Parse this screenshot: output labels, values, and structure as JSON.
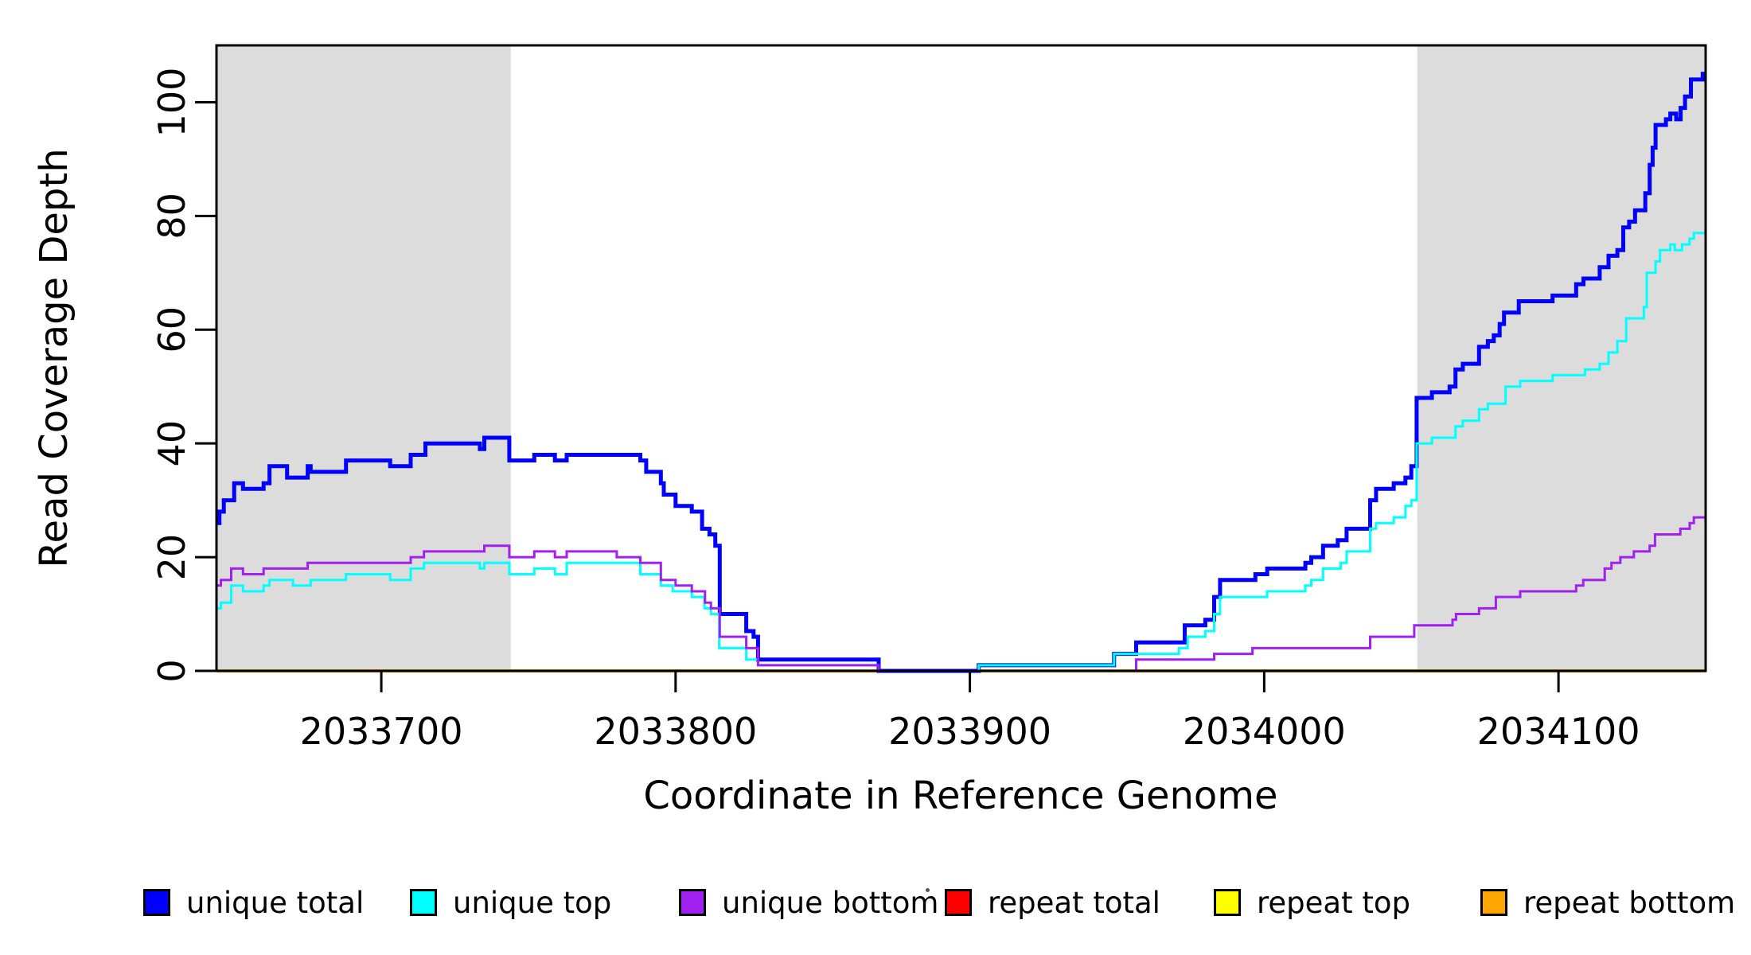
{
  "chart_data": {
    "type": "line",
    "subtype": "step-coverage-plot",
    "title": "",
    "xlabel": "Coordinate in Reference Genome",
    "ylabel": "Read Coverage Depth",
    "xlim": [
      2033644,
      2034150
    ],
    "ylim": [
      0,
      110
    ],
    "x_ticks": [
      2033700,
      2033800,
      2033900,
      2034000,
      2034100
    ],
    "y_ticks": [
      0,
      20,
      40,
      60,
      80,
      100
    ],
    "grid": false,
    "legend_position": "bottom",
    "highlight_color": "#DCDCDC",
    "highlight_regions": [
      {
        "start": 2033644,
        "end": 2033744
      },
      {
        "start": 2034052,
        "end": 2034150
      }
    ],
    "series": [
      {
        "name": "repeat total",
        "color": "#FF0000",
        "width": 3,
        "points": [
          [
            2033644,
            0
          ]
        ]
      },
      {
        "name": "repeat top",
        "color": "#FFFF00",
        "width": 3,
        "points": [
          [
            2033644,
            0
          ]
        ]
      },
      {
        "name": "repeat bottom",
        "color": "#FFA500",
        "width": 4,
        "points": [
          [
            2033644,
            0
          ]
        ]
      },
      {
        "name": "unique total",
        "color": "#0000FF",
        "width": 5,
        "points": [
          [
            2033644,
            26
          ],
          [
            2033645,
            28
          ],
          [
            2033646.5,
            30
          ],
          [
            2033650,
            33
          ],
          [
            2033653,
            32
          ],
          [
            2033660,
            33
          ],
          [
            2033662,
            36
          ],
          [
            2033668,
            34
          ],
          [
            2033675,
            36
          ],
          [
            2033676,
            35
          ],
          [
            2033688,
            37
          ],
          [
            2033703,
            36
          ],
          [
            2033710,
            38
          ],
          [
            2033715,
            40
          ],
          [
            2033733.5,
            39
          ],
          [
            2033735,
            41
          ],
          [
            2033743.5,
            37
          ],
          [
            2033752,
            38
          ],
          [
            2033759,
            37
          ],
          [
            2033763,
            38
          ],
          [
            2033788,
            37
          ],
          [
            2033790,
            35
          ],
          [
            2033795,
            33
          ],
          [
            2033796,
            31
          ],
          [
            2033800,
            29
          ],
          [
            2033805.5,
            28
          ],
          [
            2033809,
            25
          ],
          [
            2033811.5,
            24
          ],
          [
            2033813.5,
            22
          ],
          [
            2033815,
            10
          ],
          [
            2033824,
            7
          ],
          [
            2033826.5,
            6
          ],
          [
            2033828,
            2
          ],
          [
            2033869,
            0
          ],
          [
            2033903,
            1
          ],
          [
            2033949,
            3
          ],
          [
            2033956.5,
            5
          ],
          [
            2033973,
            8
          ],
          [
            2033980,
            9
          ],
          [
            2033983,
            13
          ],
          [
            2033985,
            16
          ],
          [
            2033997,
            17
          ],
          [
            2034001,
            18
          ],
          [
            2034014,
            19
          ],
          [
            2034016,
            20
          ],
          [
            2034020,
            22
          ],
          [
            2034025,
            23
          ],
          [
            2034028,
            25
          ],
          [
            2034036,
            30
          ],
          [
            2034038,
            32
          ],
          [
            2034044,
            33
          ],
          [
            2034048,
            34
          ],
          [
            2034050,
            36
          ],
          [
            2034051.8,
            48
          ],
          [
            2034057,
            49
          ],
          [
            2034063,
            50
          ],
          [
            2034065,
            53
          ],
          [
            2034067.5,
            54
          ],
          [
            2034073,
            57
          ],
          [
            2034076,
            58
          ],
          [
            2034078,
            59
          ],
          [
            2034080,
            61
          ],
          [
            2034081.5,
            63
          ],
          [
            2034086.5,
            65
          ],
          [
            2034098,
            66
          ],
          [
            2034106,
            68
          ],
          [
            2034108.5,
            69
          ],
          [
            2034114,
            71
          ],
          [
            2034117,
            73
          ],
          [
            2034120,
            74
          ],
          [
            2034122,
            78
          ],
          [
            2034124,
            79
          ],
          [
            2034126,
            81
          ],
          [
            2034129.5,
            84
          ],
          [
            2034131,
            89
          ],
          [
            2034132,
            92
          ],
          [
            2034133,
            96
          ],
          [
            2034136.5,
            97
          ],
          [
            2034138,
            98
          ],
          [
            2034140,
            97
          ],
          [
            2034141.5,
            99
          ],
          [
            2034143,
            101
          ],
          [
            2034145,
            104
          ],
          [
            2034149,
            105
          ]
        ]
      },
      {
        "name": "unique top",
        "color": "#00FFFF",
        "width": 3,
        "points": [
          [
            2033644,
            11
          ],
          [
            2033645.5,
            12
          ],
          [
            2033649,
            15
          ],
          [
            2033653,
            14
          ],
          [
            2033660,
            15
          ],
          [
            2033662,
            16
          ],
          [
            2033670,
            15
          ],
          [
            2033676,
            16
          ],
          [
            2033688,
            17
          ],
          [
            2033703,
            16
          ],
          [
            2033710,
            18
          ],
          [
            2033714.5,
            19
          ],
          [
            2033733.5,
            18
          ],
          [
            2033735,
            19
          ],
          [
            2033743.5,
            17
          ],
          [
            2033752,
            18
          ],
          [
            2033759,
            17
          ],
          [
            2033763,
            19
          ],
          [
            2033788,
            17
          ],
          [
            2033795,
            15
          ],
          [
            2033799,
            14
          ],
          [
            2033805.5,
            13
          ],
          [
            2033809.8,
            11
          ],
          [
            2033812,
            10
          ],
          [
            2033814.8,
            4
          ],
          [
            2033824,
            2
          ],
          [
            2033828,
            1
          ],
          [
            2033869,
            0
          ],
          [
            2033903,
            1
          ],
          [
            2033949,
            3
          ],
          [
            2033971,
            4
          ],
          [
            2033974,
            6
          ],
          [
            2033980,
            7
          ],
          [
            2033983,
            10
          ],
          [
            2033985,
            13
          ],
          [
            2034001,
            14
          ],
          [
            2034014,
            15
          ],
          [
            2034016,
            16
          ],
          [
            2034020,
            18
          ],
          [
            2034026,
            19
          ],
          [
            2034028,
            21
          ],
          [
            2034036,
            25
          ],
          [
            2034038,
            26
          ],
          [
            2034044,
            27
          ],
          [
            2034048,
            29
          ],
          [
            2034050,
            30
          ],
          [
            2034051.8,
            40
          ],
          [
            2034057,
            41
          ],
          [
            2034065,
            43
          ],
          [
            2034067.5,
            44
          ],
          [
            2034073,
            46
          ],
          [
            2034076,
            47
          ],
          [
            2034082,
            50
          ],
          [
            2034087,
            51
          ],
          [
            2034098,
            52
          ],
          [
            2034109,
            53
          ],
          [
            2034114,
            54
          ],
          [
            2034117,
            56
          ],
          [
            2034120,
            58
          ],
          [
            2034123,
            62
          ],
          [
            2034129,
            64
          ],
          [
            2034130,
            70
          ],
          [
            2034133,
            72
          ],
          [
            2034134.5,
            74
          ],
          [
            2034138,
            75
          ],
          [
            2034139.5,
            74
          ],
          [
            2034142,
            75
          ],
          [
            2034144.5,
            76
          ],
          [
            2034146,
            77
          ]
        ]
      },
      {
        "name": "unique bottom",
        "color": "#A020F0",
        "width": 3,
        "points": [
          [
            2033644,
            15
          ],
          [
            2033645.5,
            16
          ],
          [
            2033649,
            18
          ],
          [
            2033653,
            17
          ],
          [
            2033660,
            18
          ],
          [
            2033675,
            19
          ],
          [
            2033710,
            20
          ],
          [
            2033714.5,
            21
          ],
          [
            2033735,
            22
          ],
          [
            2033743.5,
            20
          ],
          [
            2033752,
            21
          ],
          [
            2033759,
            20
          ],
          [
            2033763,
            21
          ],
          [
            2033780,
            20
          ],
          [
            2033788,
            19
          ],
          [
            2033795,
            16
          ],
          [
            2033800,
            15
          ],
          [
            2033805.5,
            14
          ],
          [
            2033810,
            12
          ],
          [
            2033812,
            11
          ],
          [
            2033815,
            6
          ],
          [
            2033824,
            4
          ],
          [
            2033828,
            1
          ],
          [
            2033869,
            0
          ],
          [
            2033956.5,
            2
          ],
          [
            2033983,
            3
          ],
          [
            2033996,
            4
          ],
          [
            2034036,
            6
          ],
          [
            2034051,
            8
          ],
          [
            2034064,
            9
          ],
          [
            2034065.2,
            10
          ],
          [
            2034073,
            11
          ],
          [
            2034078.7,
            13
          ],
          [
            2034087,
            14
          ],
          [
            2034106,
            15
          ],
          [
            2034108.4,
            16
          ],
          [
            2034115.7,
            18
          ],
          [
            2034118,
            19
          ],
          [
            2034121,
            20
          ],
          [
            2034125.6,
            21
          ],
          [
            2034131,
            22
          ],
          [
            2034132.8,
            24
          ],
          [
            2034141.4,
            25
          ],
          [
            2034144.6,
            26
          ],
          [
            2034146,
            27
          ]
        ]
      }
    ],
    "legend": {
      "entries": [
        {
          "label": "unique total",
          "color": "#0000FF"
        },
        {
          "label": "unique top",
          "color": "#00FFFF"
        },
        {
          "label": "unique bottom",
          "color": "#A020F0"
        },
        {
          "label": "repeat total",
          "color": "#FF0000"
        },
        {
          "label": "repeat top",
          "color": "#FFFF00"
        },
        {
          "label": "repeat bottom",
          "color": "#FFA500"
        }
      ]
    }
  }
}
